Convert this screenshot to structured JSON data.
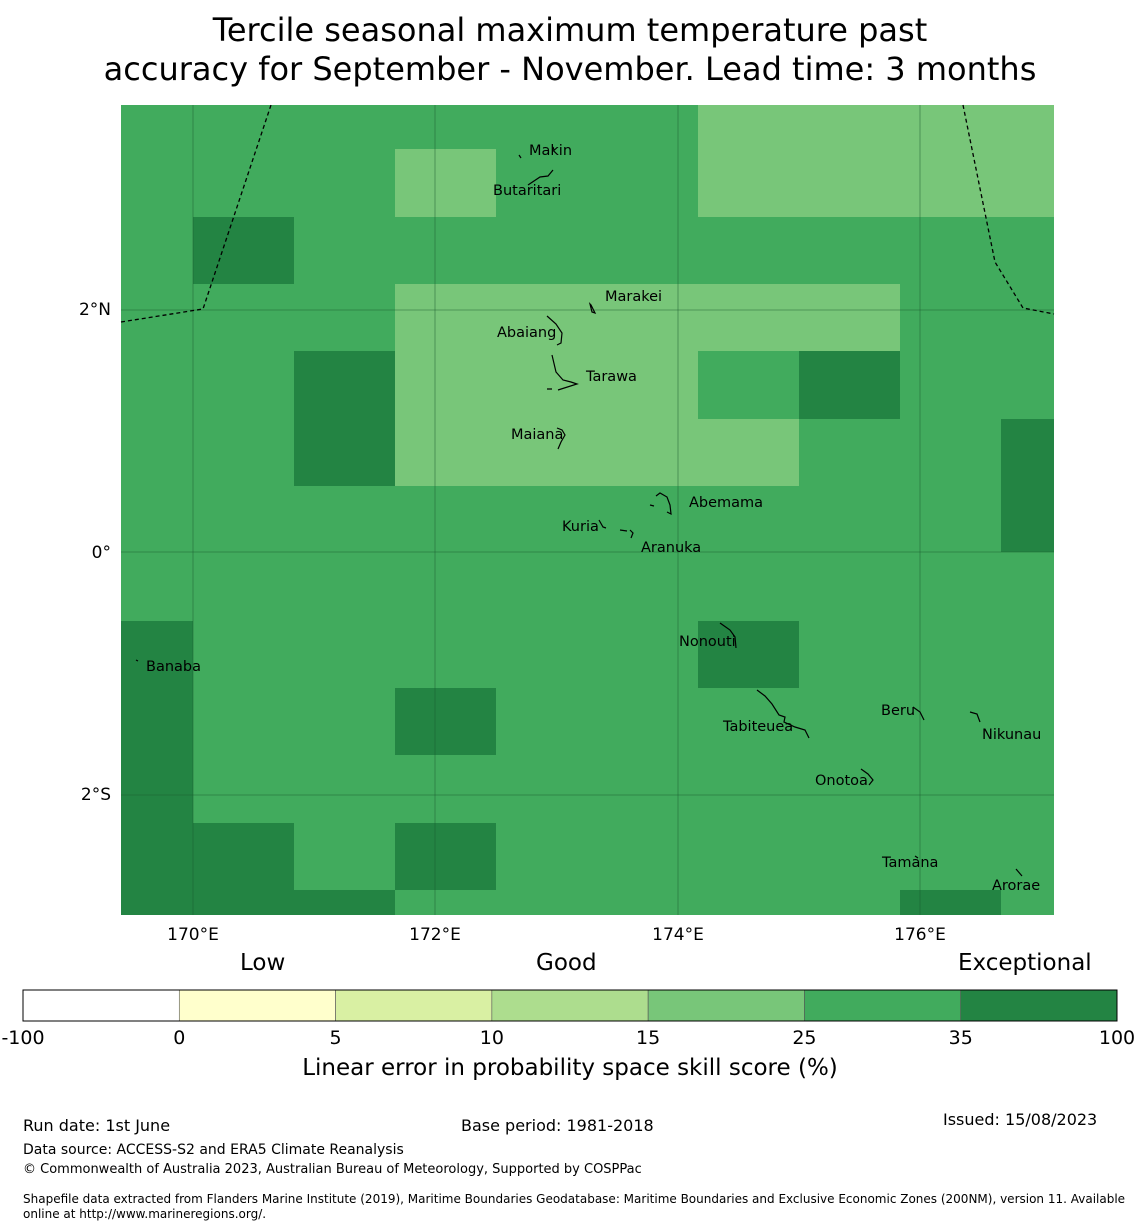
{
  "title": {
    "line1": "Tercile seasonal maximum temperature past",
    "line2": "accuracy for September - November. Lead time: 3 months"
  },
  "map": {
    "lon_range": [
      169.4,
      177.1
    ],
    "lat_range": [
      -3.0,
      3.7
    ],
    "grid_lon_ticks": [
      170,
      172,
      174,
      176
    ],
    "grid_lat_ticks": [
      2,
      0,
      -2
    ],
    "lon_tick_labels": [
      "170°E",
      "172°E",
      "174°E",
      "176°E"
    ],
    "lat_tick_labels": [
      "2°N",
      "0°",
      "2°S"
    ],
    "skill_cells_note": "0=25-35 (base), 1=15-25, 2=35-100",
    "cell_cols": 9,
    "cell_rows": 12,
    "cells": [
      [
        0,
        0,
        0,
        0,
        0,
        0,
        1,
        1,
        1
      ],
      [
        0,
        0,
        0,
        1,
        0,
        0,
        1,
        1,
        1
      ],
      [
        0,
        2,
        0,
        0,
        0,
        0,
        0,
        0,
        0
      ],
      [
        0,
        0,
        0,
        1,
        1,
        1,
        1,
        1,
        0
      ],
      [
        0,
        0,
        2,
        1,
        1,
        1,
        0,
        2,
        0
      ],
      [
        0,
        0,
        2,
        1,
        1,
        1,
        1,
        0,
        0
      ],
      [
        0,
        0,
        0,
        0,
        0,
        0,
        0,
        0,
        0
      ],
      [
        0,
        0,
        0,
        0,
        0,
        0,
        0,
        0,
        0
      ],
      [
        2,
        0,
        0,
        0,
        0,
        0,
        2,
        0,
        0
      ],
      [
        2,
        0,
        0,
        2,
        0,
        0,
        0,
        0,
        0
      ],
      [
        2,
        0,
        0,
        0,
        0,
        0,
        0,
        0,
        0
      ],
      [
        2,
        2,
        0,
        2,
        0,
        0,
        0,
        0,
        0
      ]
    ],
    "islands": [
      {
        "name": "Makin",
        "label": "Makin"
      },
      {
        "name": "Butaritari",
        "label": "Butaritari"
      },
      {
        "name": "Marakei",
        "label": "Marakei"
      },
      {
        "name": "Abaiang",
        "label": "Abaiang"
      },
      {
        "name": "Tarawa",
        "label": "Tarawa"
      },
      {
        "name": "Maiana",
        "label": "Maiana"
      },
      {
        "name": "Abemama",
        "label": "Abemama"
      },
      {
        "name": "Kuria",
        "label": "Kuria"
      },
      {
        "name": "Aranuka",
        "label": "Aranuka"
      },
      {
        "name": "Nonouti",
        "label": "Nonouti"
      },
      {
        "name": "Banaba",
        "label": "Banaba"
      },
      {
        "name": "Beru",
        "label": "Beru"
      },
      {
        "name": "Tabiteuea",
        "label": "Tabiteuea"
      },
      {
        "name": "Nikunau",
        "label": "Nikunau"
      },
      {
        "name": "Onotoa",
        "label": "Onotoa"
      },
      {
        "name": "Tamana",
        "label": "Tamana"
      },
      {
        "name": "Arorae",
        "label": "Arorae"
      }
    ]
  },
  "colorbar": {
    "categories": [
      "Low",
      "Good",
      "Exceptional"
    ],
    "boundaries": [
      "-100",
      "0",
      "5",
      "10",
      "15",
      "25",
      "35",
      "100"
    ],
    "colors": [
      "#ffffff",
      "#ffffcc",
      "#d9f0a3",
      "#addd8e",
      "#78c679",
      "#41ab5d",
      "#238443"
    ],
    "label": "Linear error in probability space skill score (%)"
  },
  "footer": {
    "run_date": "Run date: 1st June",
    "base_period": "Base period: 1981-2018",
    "issued": "Issued: 15/08/2023",
    "data_source": "Data source: ACCESS-S2 and ERA5 Climate Reanalysis",
    "copyright": "© Commonwealth of Australia 2023, Australian Bureau of Meteorology, Supported by COSPPac",
    "shapefile": "Shapefile data extracted from Flanders Marine Institute (2019), Maritime Boundaries Geodatabase: Maritime Boundaries and Exclusive Economic Zones (200NM), version 11. Available online at http://www.marineregions.org/."
  }
}
